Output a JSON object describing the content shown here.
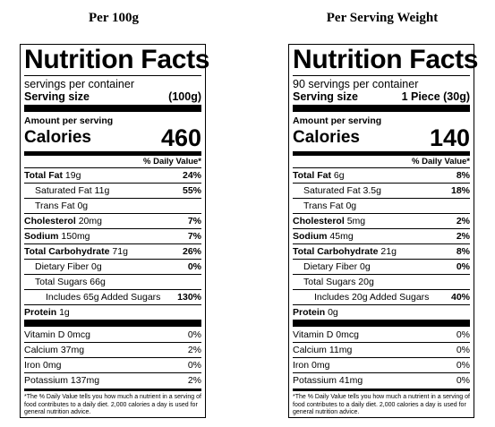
{
  "labels": [
    {
      "heading": "Per 100g",
      "title": "Nutrition Facts",
      "servings": "servings per container",
      "serving_size_label": "Serving size",
      "serving_size_value": "(100g)",
      "amount_per_serving": "Amount per serving",
      "calories_label": "Calories",
      "calories_value": "460",
      "dv_header": "% Daily Value*",
      "total_fat": {
        "label": "Total Fat",
        "amount": "19g",
        "dv": "24%"
      },
      "saturated_fat": {
        "label": "Saturated Fat 11g",
        "dv": "55%"
      },
      "trans_fat": {
        "label": "Trans Fat 0g"
      },
      "cholesterol": {
        "label": "Cholesterol",
        "amount": "20mg",
        "dv": "7%"
      },
      "sodium": {
        "label": "Sodium",
        "amount": "150mg",
        "dv": "7%"
      },
      "total_carb": {
        "label": "Total Carbohydrate",
        "amount": "71g",
        "dv": "26%"
      },
      "fiber": {
        "label": "Dietary Fiber 0g",
        "dv": "0%"
      },
      "sugars": {
        "label": "Total Sugars 66g"
      },
      "added_sugars": {
        "label": "Includes 65g Added Sugars",
        "dv": "130%"
      },
      "protein": {
        "label": "Protein",
        "amount": "1g"
      },
      "vitamin_d": {
        "label": "Vitamin D 0mcg",
        "dv": "0%"
      },
      "calcium": {
        "label": "Calcium 37mg",
        "dv": "2%"
      },
      "iron": {
        "label": "Iron 0mg",
        "dv": "0%"
      },
      "potassium": {
        "label": "Potassium 137mg",
        "dv": "2%"
      },
      "footnote": "*The % Daily Value tells you how much a nutrient in a serving of food contributes to a daily diet. 2,000 calories a day is used for general nutrition advice."
    },
    {
      "heading": "Per Serving Weight",
      "title": "Nutrition Facts",
      "servings": "90 servings per container",
      "serving_size_label": "Serving size",
      "serving_size_value": "1 Piece (30g)",
      "amount_per_serving": "Amount per serving",
      "calories_label": "Calories",
      "calories_value": "140",
      "dv_header": "% Daily Value*",
      "total_fat": {
        "label": "Total Fat",
        "amount": "6g",
        "dv": "8%"
      },
      "saturated_fat": {
        "label": "Saturated Fat 3.5g",
        "dv": "18%"
      },
      "trans_fat": {
        "label": "Trans Fat 0g"
      },
      "cholesterol": {
        "label": "Cholesterol",
        "amount": "5mg",
        "dv": "2%"
      },
      "sodium": {
        "label": "Sodium",
        "amount": "45mg",
        "dv": "2%"
      },
      "total_carb": {
        "label": "Total Carbohydrate",
        "amount": "21g",
        "dv": "8%"
      },
      "fiber": {
        "label": "Dietary Fiber 0g",
        "dv": "0%"
      },
      "sugars": {
        "label": "Total Sugars 20g"
      },
      "added_sugars": {
        "label": "Includes 20g Added Sugars",
        "dv": "40%"
      },
      "protein": {
        "label": "Protein",
        "amount": "0g"
      },
      "vitamin_d": {
        "label": "Vitamin D 0mcg",
        "dv": "0%"
      },
      "calcium": {
        "label": "Calcium 11mg",
        "dv": "0%"
      },
      "iron": {
        "label": "Iron 0mg",
        "dv": "0%"
      },
      "potassium": {
        "label": "Potassium 41mg",
        "dv": "0%"
      },
      "footnote": "*The % Daily Value tells you how much a nutrient in a serving of food contributes to a daily diet. 2,000 calories a day is used for general nutrition advice."
    }
  ]
}
